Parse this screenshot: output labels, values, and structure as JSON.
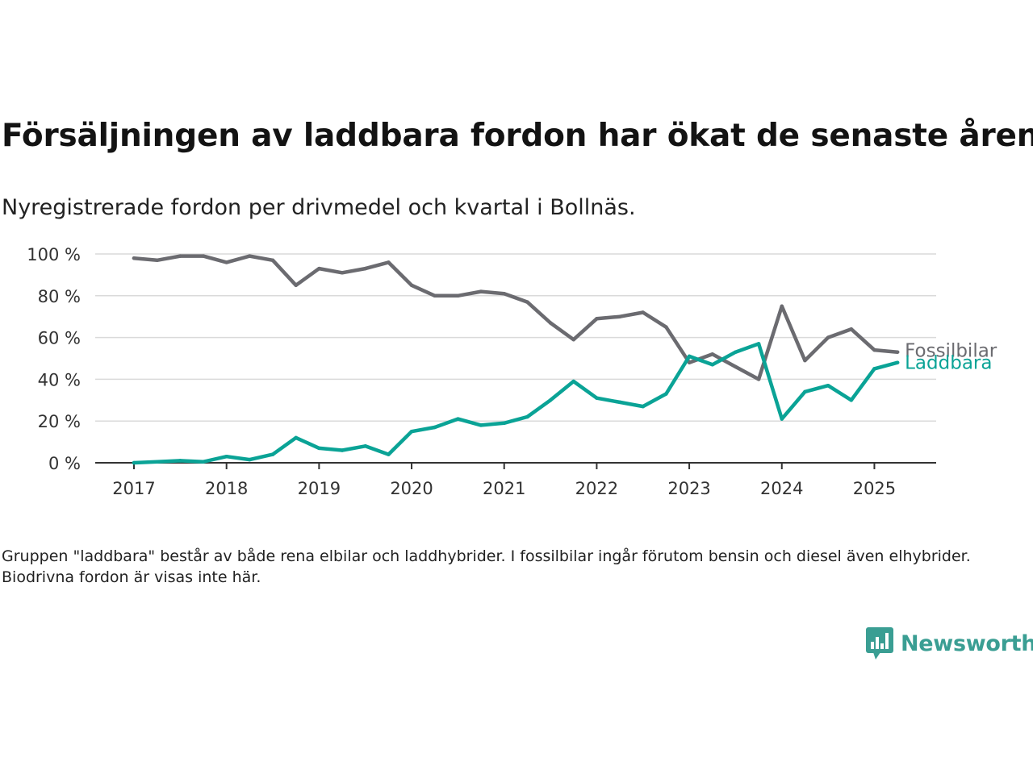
{
  "header": {
    "title": "Försäljningen av laddbara fordon har ökat de senaste åren",
    "subtitle": "Nyregistrerade fordon per drivmedel och kvartal i Bollnäs."
  },
  "footer": {
    "note": "Gruppen \"laddbara\" består av både rena elbilar och laddhybrider. I fossilbilar ingår förutom bensin och diesel även elhybrider. Biodrivna fordon är visas inte här.",
    "brand": "Newsworthy"
  },
  "colors": {
    "fossil": "#6b6b70",
    "laddbara": "#0aa396",
    "grid": "#dadada",
    "axis": "#333333",
    "brand": "#3a9e93"
  },
  "icons": {
    "brand_logo": "newsworthy-logo-icon"
  },
  "chart_data": {
    "type": "line",
    "title": "Försäljningen av laddbara fordon har ökat de senaste åren",
    "subtitle": "Nyregistrerade fordon per drivmedel och kvartal i Bollnäs.",
    "x_tick_labels": [
      "2017",
      "2018",
      "2019",
      "2020",
      "2021",
      "2022",
      "2023",
      "2024",
      "2025"
    ],
    "y_tick_labels": [
      "0 %",
      "20 %",
      "40 %",
      "60 %",
      "80 %",
      "100 %"
    ],
    "y_ticks": [
      0,
      20,
      40,
      60,
      80,
      100
    ],
    "ylim": [
      0,
      100
    ],
    "y_unit": "%",
    "grid": true,
    "legend": "inline labels at line ends",
    "x": [
      "2017-Q1",
      "2017-Q2",
      "2017-Q3",
      "2017-Q4",
      "2018-Q1",
      "2018-Q2",
      "2018-Q3",
      "2018-Q4",
      "2019-Q1",
      "2019-Q2",
      "2019-Q3",
      "2019-Q4",
      "2020-Q1",
      "2020-Q2",
      "2020-Q3",
      "2020-Q4",
      "2021-Q1",
      "2021-Q2",
      "2021-Q3",
      "2021-Q4",
      "2022-Q1",
      "2022-Q2",
      "2022-Q3",
      "2022-Q4",
      "2023-Q1",
      "2023-Q2",
      "2023-Q3",
      "2023-Q4",
      "2024-Q1",
      "2024-Q2",
      "2024-Q3",
      "2024-Q4",
      "2025-Q1",
      "2025-Q2"
    ],
    "series": [
      {
        "name": "Fossilbilar",
        "color": "#6b6b70",
        "values": [
          98,
          97,
          99,
          99,
          96,
          99,
          97,
          85,
          93,
          91,
          93,
          96,
          85,
          80,
          80,
          82,
          81,
          77,
          67,
          59,
          69,
          70,
          72,
          65,
          48,
          52,
          46,
          40,
          75,
          49,
          60,
          64,
          54,
          53
        ]
      },
      {
        "name": "Laddbara",
        "color": "#0aa396",
        "values": [
          0,
          0.5,
          1,
          0.5,
          3,
          1.5,
          4,
          12,
          7,
          6,
          8,
          4,
          15,
          17,
          21,
          18,
          19,
          22,
          30,
          39,
          31,
          29,
          27,
          33,
          51,
          47,
          53,
          57,
          21,
          34,
          37,
          30,
          45,
          48
        ]
      }
    ]
  }
}
